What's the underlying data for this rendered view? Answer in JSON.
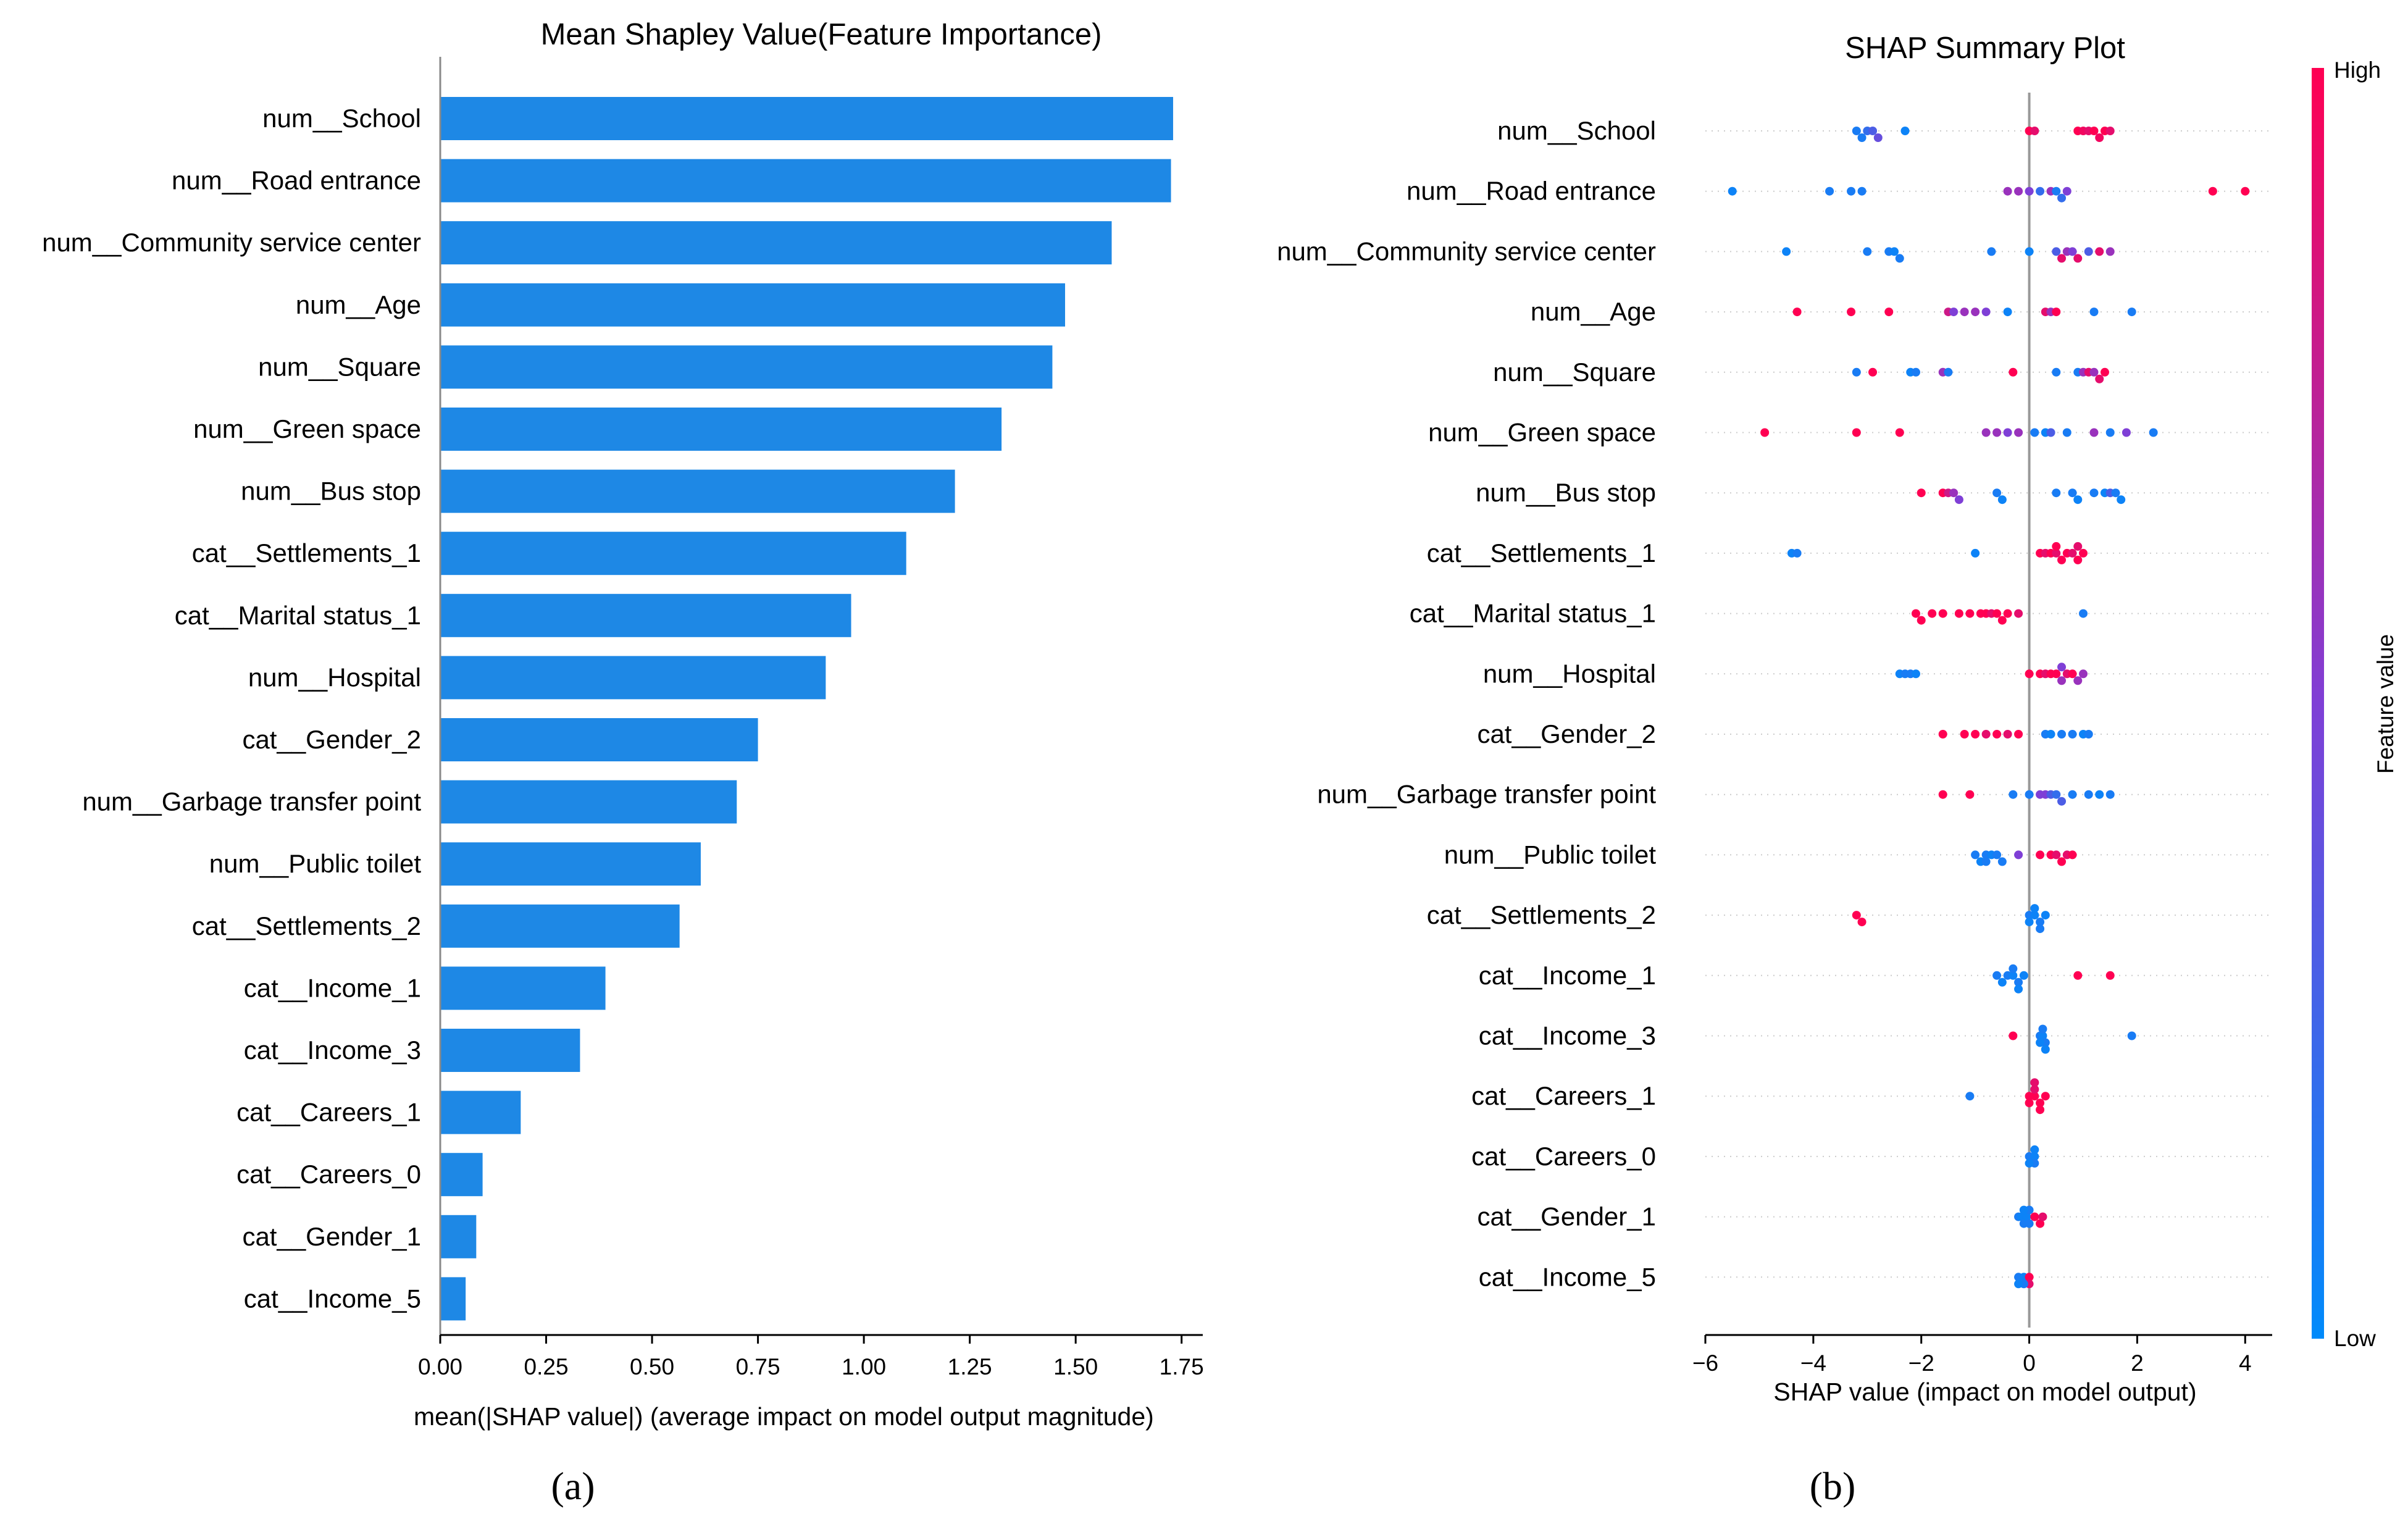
{
  "chart_data": [
    {
      "type": "bar",
      "orientation": "horizontal",
      "title": "Mean Shapley Value(Feature Importance)",
      "xlabel": "mean(|SHAP value|) (average impact on model output magnitude)",
      "xlim": [
        0,
        1.8
      ],
      "xticks": [
        "0.00",
        "0.25",
        "0.50",
        "0.75",
        "1.00",
        "1.25",
        "1.50",
        "1.75"
      ],
      "color": "#1e88e5",
      "categories": [
        "num__School",
        "num__Road entrance",
        "num__Community service center",
        "num__Age",
        "num__Square",
        "num__Green space",
        "num__Bus stop",
        "cat__Settlements_1",
        "cat__Marital status_1",
        "num__Hospital",
        "cat__Gender_2",
        "num__Garbage transfer point",
        "num__Public toilet",
        "cat__Settlements_2",
        "cat__Income_1",
        "cat__Income_3",
        "cat__Careers_1",
        "cat__Careers_0",
        "cat__Gender_1",
        "cat__Income_5"
      ],
      "values": [
        1.73,
        1.725,
        1.585,
        1.475,
        1.445,
        1.325,
        1.215,
        1.1,
        0.97,
        0.91,
        0.75,
        0.7,
        0.615,
        0.565,
        0.39,
        0.33,
        0.19,
        0.1,
        0.085,
        0.06
      ],
      "caption": "(a)"
    },
    {
      "type": "scatter",
      "subtype": "shap-beeswarm",
      "title": "SHAP Summary Plot",
      "xlabel": "SHAP value (impact on model output)",
      "xlim": [
        -6,
        4.5
      ],
      "xticks": [
        "−6",
        "−4",
        "−2",
        "0",
        "2",
        "4"
      ],
      "colorbar": {
        "label": "Feature value",
        "high": "High",
        "low": "Low",
        "high_color": "#ff0052",
        "low_color": "#008bfb"
      },
      "categories": [
        "num__School",
        "num__Road entrance",
        "num__Community service center",
        "num__Age",
        "num__Square",
        "num__Green space",
        "num__Bus stop",
        "cat__Settlements_1",
        "cat__Marital status_1",
        "num__Hospital",
        "cat__Gender_2",
        "num__Garbage transfer point",
        "num__Public toilet",
        "cat__Settlements_2",
        "cat__Income_1",
        "cat__Income_3",
        "cat__Careers_1",
        "cat__Careers_0",
        "cat__Gender_1",
        "cat__Income_5"
      ],
      "points": [
        [
          [
            -3.2,
            0.1
          ],
          [
            -3.1,
            0.1
          ],
          [
            -3.0,
            0.2
          ],
          [
            -2.9,
            0.3
          ],
          [
            -2.8,
            0.4
          ],
          [
            -2.3,
            0.05
          ],
          [
            0.0,
            1.0
          ],
          [
            0.1,
            0.9
          ],
          [
            0.9,
            1.0
          ],
          [
            1.0,
            0.95
          ],
          [
            1.1,
            0.9
          ],
          [
            1.2,
            1.0
          ],
          [
            1.3,
            0.95
          ],
          [
            1.4,
            1.0
          ],
          [
            1.5,
            0.9
          ]
        ],
        [
          [
            -5.5,
            0.05
          ],
          [
            -3.7,
            0.1
          ],
          [
            -3.3,
            0.1
          ],
          [
            -3.1,
            0.1
          ],
          [
            -0.4,
            0.6
          ],
          [
            -0.2,
            0.6
          ],
          [
            0.0,
            0.5
          ],
          [
            0.2,
            0.2
          ],
          [
            0.4,
            0.6
          ],
          [
            0.5,
            0.1
          ],
          [
            0.6,
            0.2
          ],
          [
            0.7,
            0.5
          ],
          [
            3.4,
            1.0
          ],
          [
            4.0,
            1.0
          ]
        ],
        [
          [
            -4.5,
            0.05
          ],
          [
            -3.0,
            0.1
          ],
          [
            -2.6,
            0.1
          ],
          [
            -2.5,
            0.05
          ],
          [
            -2.4,
            0.1
          ],
          [
            -0.7,
            0.1
          ],
          [
            0.0,
            0.05
          ],
          [
            0.5,
            0.3
          ],
          [
            0.6,
            0.9
          ],
          [
            0.7,
            0.6
          ],
          [
            0.8,
            0.5
          ],
          [
            0.9,
            0.9
          ],
          [
            1.1,
            0.3
          ],
          [
            1.3,
            0.9
          ],
          [
            1.5,
            0.6
          ]
        ],
        [
          [
            -4.3,
            1.0
          ],
          [
            -3.3,
            1.0
          ],
          [
            -2.6,
            1.0
          ],
          [
            -1.5,
            0.8
          ],
          [
            -1.4,
            0.5
          ],
          [
            -1.2,
            0.6
          ],
          [
            -1.0,
            0.6
          ],
          [
            -0.8,
            0.5
          ],
          [
            -0.4,
            0.05
          ],
          [
            0.3,
            0.9
          ],
          [
            0.4,
            0.6
          ],
          [
            0.5,
            1.0
          ],
          [
            1.2,
            0.1
          ],
          [
            1.9,
            0.1
          ]
        ],
        [
          [
            -3.2,
            0.1
          ],
          [
            -2.9,
            1.0
          ],
          [
            -2.2,
            0.05
          ],
          [
            -2.1,
            0.1
          ],
          [
            -1.6,
            0.6
          ],
          [
            -1.5,
            0.1
          ],
          [
            -0.3,
            1.0
          ],
          [
            0.5,
            0.1
          ],
          [
            0.9,
            0.1
          ],
          [
            1.0,
            0.6
          ],
          [
            1.1,
            0.9
          ],
          [
            1.2,
            0.6
          ],
          [
            1.3,
            0.9
          ],
          [
            1.4,
            1.0
          ]
        ],
        [
          [
            -4.9,
            1.0
          ],
          [
            -3.2,
            1.0
          ],
          [
            -2.4,
            1.0
          ],
          [
            -0.8,
            0.6
          ],
          [
            -0.6,
            0.6
          ],
          [
            -0.4,
            0.5
          ],
          [
            -0.2,
            0.6
          ],
          [
            0.1,
            0.1
          ],
          [
            0.3,
            0.05
          ],
          [
            0.4,
            0.3
          ],
          [
            0.7,
            0.1
          ],
          [
            1.2,
            0.6
          ],
          [
            1.5,
            0.1
          ],
          [
            1.8,
            0.5
          ],
          [
            2.3,
            0.1
          ]
        ],
        [
          [
            -2.0,
            1.0
          ],
          [
            -1.6,
            1.0
          ],
          [
            -1.5,
            0.8
          ],
          [
            -1.4,
            0.6
          ],
          [
            -1.3,
            0.5
          ],
          [
            -0.6,
            0.1
          ],
          [
            -0.5,
            0.05
          ],
          [
            0.5,
            0.1
          ],
          [
            0.8,
            0.1
          ],
          [
            0.9,
            0.05
          ],
          [
            1.2,
            0.1
          ],
          [
            1.4,
            0.05
          ],
          [
            1.5,
            0.3
          ],
          [
            1.6,
            0.1
          ],
          [
            1.7,
            0.05
          ]
        ],
        [
          [
            -4.4,
            0.05
          ],
          [
            -4.3,
            0.1
          ],
          [
            -1.0,
            0.05
          ],
          [
            0.2,
            1.0
          ],
          [
            0.3,
            0.9
          ],
          [
            0.4,
            1.0
          ],
          [
            0.5,
            0.9
          ],
          [
            0.6,
            1.0
          ],
          [
            0.7,
            1.0
          ],
          [
            0.8,
            0.9
          ],
          [
            0.9,
            1.0
          ],
          [
            1.0,
            1.0
          ],
          [
            0.5,
            1.0
          ],
          [
            0.9,
            0.9
          ]
        ],
        [
          [
            -2.1,
            1.0
          ],
          [
            -2.0,
            1.0
          ],
          [
            -1.8,
            1.0
          ],
          [
            -1.6,
            1.0
          ],
          [
            -1.3,
            1.0
          ],
          [
            -1.1,
            1.0
          ],
          [
            -0.9,
            1.0
          ],
          [
            -0.8,
            1.0
          ],
          [
            -0.7,
            0.9
          ],
          [
            -0.6,
            1.0
          ],
          [
            -0.5,
            1.0
          ],
          [
            -0.4,
            1.0
          ],
          [
            -0.2,
            0.9
          ],
          [
            1.0,
            0.1
          ]
        ],
        [
          [
            -2.4,
            0.05
          ],
          [
            -2.3,
            0.1
          ],
          [
            -2.2,
            0.1
          ],
          [
            -2.1,
            0.05
          ],
          [
            0.0,
            1.0
          ],
          [
            0.2,
            1.0
          ],
          [
            0.3,
            0.9
          ],
          [
            0.4,
            1.0
          ],
          [
            0.5,
            1.0
          ],
          [
            0.6,
            0.6
          ],
          [
            0.7,
            0.9
          ],
          [
            0.8,
            1.0
          ],
          [
            0.9,
            0.6
          ],
          [
            1.0,
            0.6
          ],
          [
            0.6,
            0.5
          ]
        ],
        [
          [
            -1.6,
            1.0
          ],
          [
            -1.2,
            1.0
          ],
          [
            -1.0,
            1.0
          ],
          [
            -0.8,
            0.9
          ],
          [
            -0.6,
            1.0
          ],
          [
            -0.4,
            0.9
          ],
          [
            -0.2,
            1.0
          ],
          [
            0.3,
            0.1
          ],
          [
            0.4,
            0.05
          ],
          [
            0.6,
            0.1
          ],
          [
            0.8,
            0.1
          ],
          [
            1.0,
            0.05
          ],
          [
            1.1,
            0.1
          ]
        ],
        [
          [
            -1.6,
            1.0
          ],
          [
            -1.1,
            1.0
          ],
          [
            -0.3,
            0.1
          ],
          [
            0.0,
            0.1
          ],
          [
            0.2,
            0.5
          ],
          [
            0.3,
            0.5
          ],
          [
            0.4,
            0.3
          ],
          [
            0.5,
            0.2
          ],
          [
            0.6,
            0.3
          ],
          [
            0.8,
            0.1
          ],
          [
            1.1,
            0.1
          ],
          [
            1.3,
            0.05
          ],
          [
            1.5,
            0.1
          ]
        ],
        [
          [
            -1.0,
            0.1
          ],
          [
            -0.9,
            0.05
          ],
          [
            -0.8,
            0.1
          ],
          [
            -0.7,
            0.05
          ],
          [
            -0.6,
            0.1
          ],
          [
            -0.5,
            0.1
          ],
          [
            -0.2,
            0.5
          ],
          [
            0.2,
            1.0
          ],
          [
            0.4,
            1.0
          ],
          [
            0.5,
            0.9
          ],
          [
            0.6,
            1.0
          ],
          [
            0.7,
            0.9
          ],
          [
            0.8,
            1.0
          ],
          [
            -0.8,
            0.1
          ]
        ],
        [
          [
            -3.2,
            1.0
          ],
          [
            -3.1,
            1.0
          ],
          [
            0.0,
            0.1
          ],
          [
            0.1,
            0.05
          ],
          [
            0.2,
            0.1
          ],
          [
            0.3,
            0.05
          ],
          [
            0.1,
            0.05
          ],
          [
            0.2,
            0.1
          ],
          [
            0.0,
            0.05
          ]
        ],
        [
          [
            -0.6,
            0.1
          ],
          [
            -0.5,
            0.05
          ],
          [
            -0.4,
            0.1
          ],
          [
            -0.3,
            0.05
          ],
          [
            -0.2,
            0.1
          ],
          [
            -0.1,
            0.05
          ],
          [
            -0.3,
            0.1
          ],
          [
            -0.2,
            0.05
          ],
          [
            0.9,
            1.0
          ],
          [
            1.5,
            1.0
          ]
        ],
        [
          [
            -0.3,
            1.0
          ],
          [
            0.2,
            0.1
          ],
          [
            0.25,
            0.05
          ],
          [
            0.3,
            0.1
          ],
          [
            0.2,
            0.05
          ],
          [
            0.25,
            0.1
          ],
          [
            0.3,
            0.05
          ],
          [
            1.9,
            0.1
          ]
        ],
        [
          [
            -1.1,
            0.1
          ],
          [
            0.0,
            1.0
          ],
          [
            0.1,
            1.0
          ],
          [
            0.2,
            1.0
          ],
          [
            0.3,
            1.0
          ],
          [
            0.1,
            0.9
          ],
          [
            0.2,
            1.0
          ],
          [
            0.0,
            1.0
          ],
          [
            0.1,
            0.9
          ]
        ],
        [
          [
            0.0,
            0.1
          ],
          [
            0.1,
            0.05
          ],
          [
            0.1,
            0.1
          ],
          [
            0.0,
            0.05
          ],
          [
            0.1,
            0.05
          ]
        ],
        [
          [
            -0.2,
            0.1
          ],
          [
            -0.15,
            0.05
          ],
          [
            -0.1,
            0.1
          ],
          [
            -0.05,
            0.05
          ],
          [
            0.0,
            0.1
          ],
          [
            0.1,
            1.0
          ],
          [
            0.2,
            1.0
          ],
          [
            0.25,
            0.9
          ],
          [
            0.0,
            0.1
          ],
          [
            -0.1,
            0.05
          ]
        ],
        [
          [
            -0.2,
            0.1
          ],
          [
            -0.1,
            0.05
          ],
          [
            0.0,
            1.0
          ],
          [
            0.0,
            0.9
          ],
          [
            -0.1,
            0.1
          ],
          [
            -0.2,
            0.05
          ]
        ]
      ],
      "caption": "(b)"
    }
  ]
}
